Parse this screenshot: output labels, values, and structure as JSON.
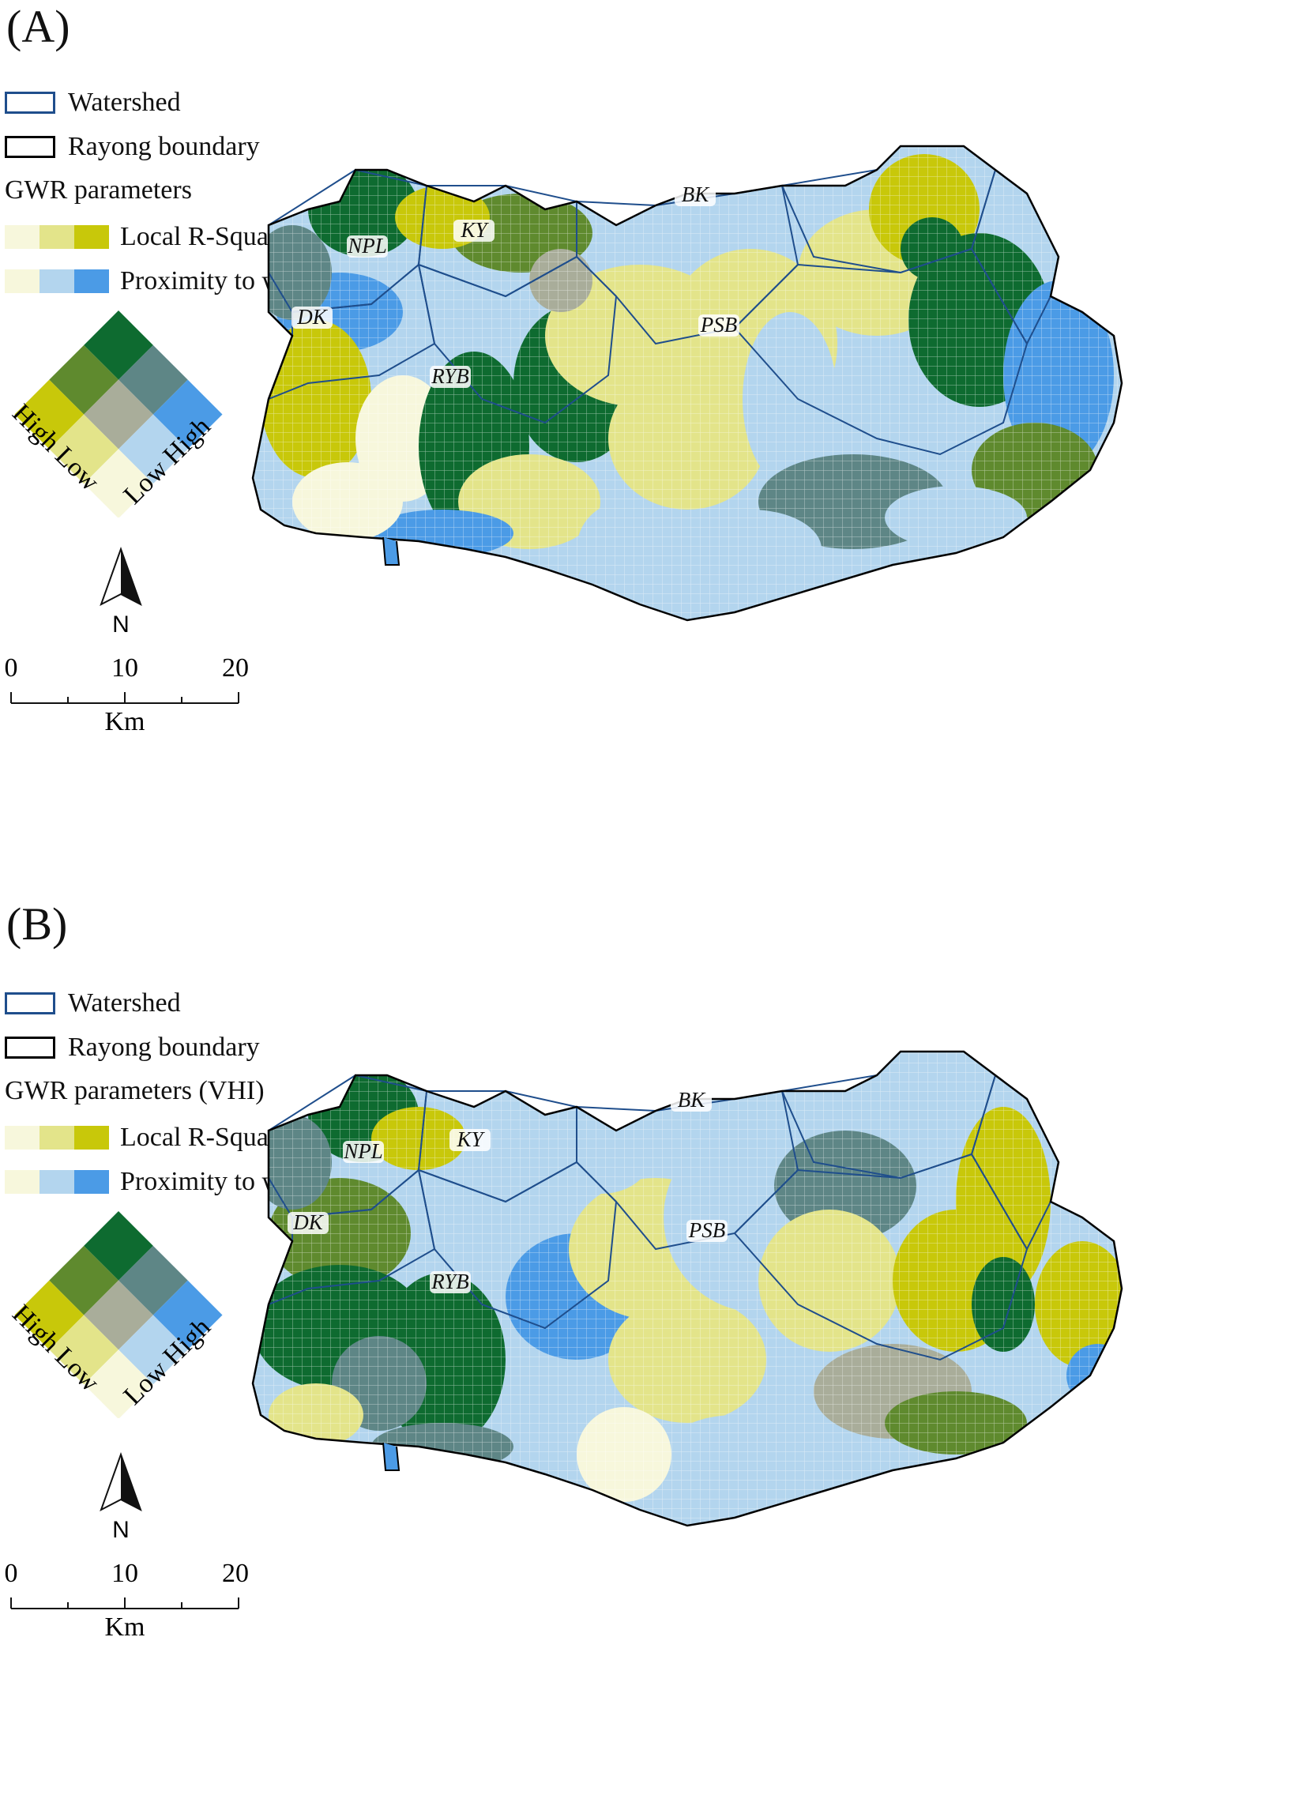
{
  "panels": [
    {
      "label": "(A)",
      "legend": {
        "watershed": "Watershed",
        "boundary": "Rayong boundary",
        "params_title": "GWR parameters",
        "r_squared": "Local R-Squared",
        "proximity": "Proximity to water",
        "axis_left": "High Low",
        "axis_right": "Low High"
      },
      "north": "N",
      "scale": {
        "ticks": [
          "0",
          "10",
          "20"
        ],
        "unit": "Km"
      },
      "places": [
        "NPL",
        "KY",
        "BK",
        "DK",
        "PSB",
        "RYB"
      ]
    },
    {
      "label": "(B)",
      "legend": {
        "watershed": "Watershed",
        "boundary": "Rayong boundary",
        "params_title": "GWR parameters (VHI)",
        "r_squared": "Local R-Squared",
        "proximity": "Proximity to water",
        "axis_left": "High Low",
        "axis_right": "Low High"
      },
      "north": "N",
      "scale": {
        "ticks": [
          "0",
          "10",
          "20"
        ],
        "unit": "Km"
      },
      "places": [
        "NPL",
        "KY",
        "BK",
        "DK",
        "PSB",
        "RYB"
      ]
    }
  ],
  "colors": {
    "watershed_outline": "#1f4e8c",
    "boundary_outline": "#000000",
    "r_squared_ramp": [
      "#f7f7dc",
      "#e3e48a",
      "#c8c80a"
    ],
    "proximity_ramp": [
      "#f7f7dc",
      "#b3d5ee",
      "#4b9be6"
    ],
    "bivariate_grid": [
      [
        "#c8c80a",
        "#5f8a2e",
        "#0e6b30"
      ],
      [
        "#e3e48a",
        "#a9ad9a",
        "#5e8686"
      ],
      [
        "#f7f7dc",
        "#b3d5ee",
        "#4b9be6"
      ]
    ],
    "grid_line": "#ffffff"
  }
}
